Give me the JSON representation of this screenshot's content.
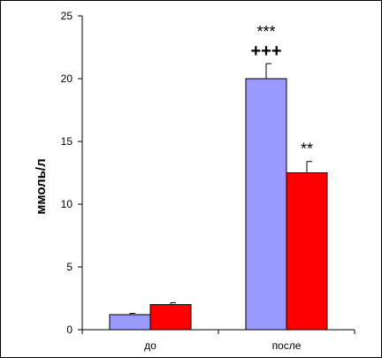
{
  "chart_data": {
    "type": "bar",
    "title": "",
    "xlabel": "",
    "ylabel": "ммоль/л",
    "ylim": [
      0,
      25
    ],
    "yticks": [
      0,
      5,
      10,
      15,
      20,
      25
    ],
    "categories": [
      "до",
      "после"
    ],
    "series": [
      {
        "values": [
          1.2,
          20.0
        ],
        "errors": [
          0.1,
          1.2
        ],
        "color": "#9999ff"
      },
      {
        "values": [
          2.0,
          12.5
        ],
        "errors": [
          0.15,
          0.9
        ],
        "color": "#ff0000"
      }
    ],
    "annotations": [
      {
        "category": 1,
        "series": 0,
        "text": "***"
      },
      {
        "category": 1,
        "series": 0,
        "text": "+++"
      },
      {
        "category": 1,
        "series": 1,
        "text": "**"
      }
    ],
    "grid": false,
    "legend": "none"
  }
}
